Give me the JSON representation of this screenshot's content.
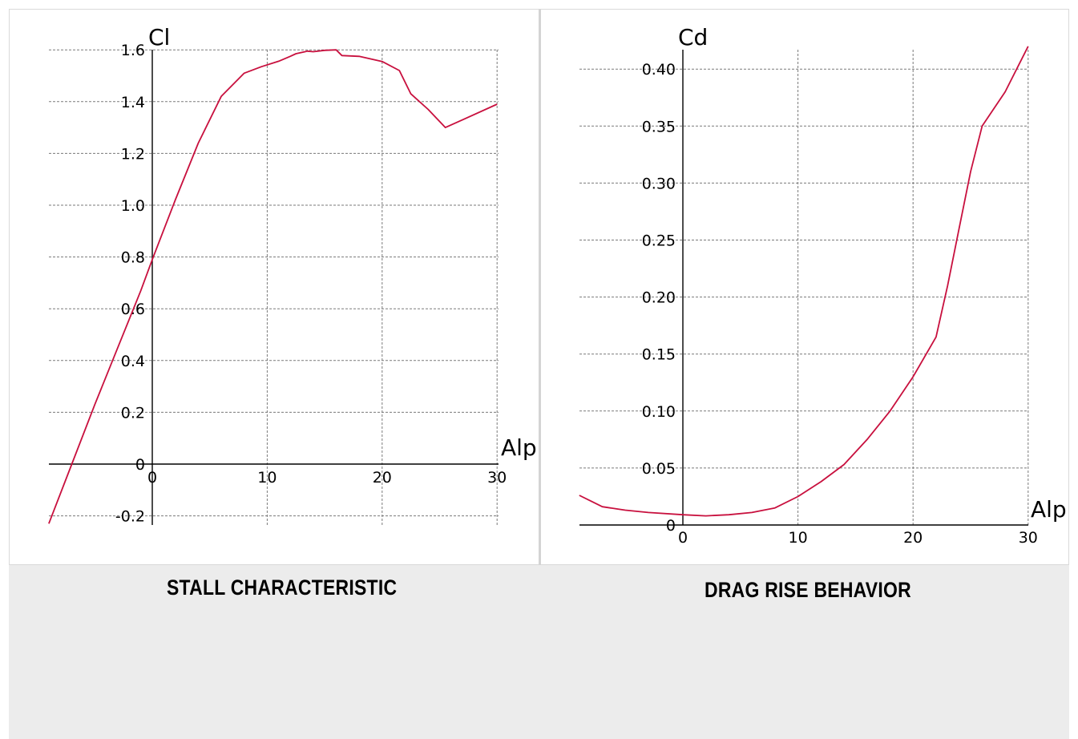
{
  "chart_data": [
    {
      "type": "line",
      "title": "STALL CHARACTERISTIC",
      "xlabel": "Alp",
      "ylabel": "Cl",
      "xlim": [
        -9,
        30
      ],
      "ylim": [
        -0.23,
        1.6
      ],
      "xticks": [
        "0",
        "10",
        "20",
        "30"
      ],
      "yticks": [
        "1.6",
        "1.4",
        "1.2",
        "1.0",
        "0.8",
        "0.6",
        "0.4",
        "0.2",
        "0",
        "-0.2"
      ],
      "grid": true,
      "line_color": "#c8103e",
      "series": [
        {
          "x": [
            -9,
            -7,
            -5,
            -3,
            -1,
            0,
            2,
            4,
            6,
            8,
            9.5,
            11,
            12,
            12.5,
            13.5,
            14,
            15,
            16,
            16.5,
            18,
            20,
            21.5,
            22.5,
            24,
            25.5,
            27,
            30
          ],
          "y": [
            -0.23,
            0.0,
            0.23,
            0.45,
            0.67,
            0.79,
            1.02,
            1.24,
            1.42,
            1.51,
            1.535,
            1.556,
            1.575,
            1.585,
            1.595,
            1.593,
            1.598,
            1.6,
            1.578,
            1.575,
            1.555,
            1.52,
            1.43,
            1.37,
            1.3,
            1.33,
            1.39
          ]
        }
      ]
    },
    {
      "type": "line",
      "title": "DRAG RISE BEHAVIOR",
      "xlabel": "Alp",
      "ylabel": "Cd",
      "xlim": [
        -9,
        30
      ],
      "ylim": [
        0,
        0.42
      ],
      "xticks": [
        "0",
        "10",
        "20",
        "30"
      ],
      "yticks": [
        "0.40",
        "0.35",
        "0.30",
        "0.25",
        "0.20",
        "0.15",
        "0.10",
        "0.05",
        "0"
      ],
      "grid": true,
      "line_color": "#c8103e",
      "series": [
        {
          "x": [
            -9,
            -8,
            -7,
            -5,
            -3,
            0,
            2,
            4,
            6,
            8,
            10,
            12,
            14,
            16,
            18,
            20,
            22,
            23,
            24,
            25,
            26,
            28,
            30
          ],
          "y": [
            0.026,
            0.021,
            0.016,
            0.013,
            0.011,
            0.009,
            0.008,
            0.009,
            0.011,
            0.015,
            0.025,
            0.038,
            0.053,
            0.075,
            0.1,
            0.13,
            0.165,
            0.21,
            0.26,
            0.31,
            0.35,
            0.38,
            0.42
          ]
        }
      ]
    }
  ]
}
